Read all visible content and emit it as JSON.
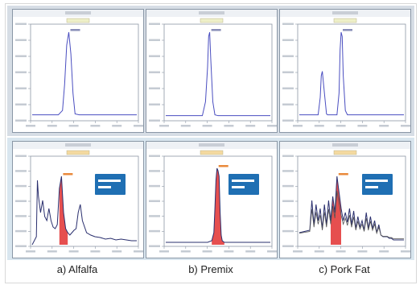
{
  "captions": [
    "a) Alfalfa",
    "b) Premix",
    "c) Pork Fat"
  ],
  "colors": {
    "trace": "#4a4ec0",
    "trace_dark": "#2a2f6e",
    "trace_gray": "#555555",
    "peak_fill": "#e23030",
    "box_bg": "#1f6fb3",
    "box_text": "#ffffff",
    "row_top_bg": "#d6dde5",
    "row_bot_bg": "#d9e6ef"
  },
  "chart_data": [
    {
      "type": "line",
      "panel": "a-top",
      "x": [
        0,
        25,
        29,
        31,
        33,
        35,
        37,
        39,
        41,
        45,
        100
      ],
      "y": [
        0.05,
        0.05,
        0.1,
        0.4,
        0.85,
        1.0,
        0.75,
        0.3,
        0.06,
        0.05,
        0.05
      ]
    },
    {
      "type": "line",
      "panel": "b-top",
      "x": [
        0,
        35,
        38,
        40,
        41,
        42,
        43,
        45,
        47,
        50,
        100
      ],
      "y": [
        0.04,
        0.04,
        0.2,
        0.6,
        0.95,
        1.0,
        0.7,
        0.2,
        0.05,
        0.04,
        0.04
      ]
    },
    {
      "type": "line",
      "panel": "c-top",
      "x": [
        0,
        18,
        20,
        21,
        22,
        24,
        26,
        27,
        36,
        38,
        39,
        40,
        41,
        42,
        44,
        46,
        100
      ],
      "y": [
        0.05,
        0.05,
        0.25,
        0.5,
        0.55,
        0.3,
        0.06,
        0.05,
        0.05,
        0.3,
        0.8,
        1.0,
        0.95,
        0.5,
        0.1,
        0.05,
        0.05
      ]
    },
    {
      "type": "line",
      "panel": "a-bottom",
      "x": [
        0,
        4,
        5,
        6,
        8,
        10,
        12,
        14,
        16,
        18,
        20,
        22,
        24,
        26,
        28,
        30,
        32,
        34,
        36,
        38,
        40,
        42,
        44,
        46,
        48,
        52,
        56,
        60,
        65,
        70,
        75,
        80,
        85,
        90,
        95,
        100
      ],
      "y": [
        0.0,
        0.1,
        0.8,
        0.6,
        0.4,
        0.55,
        0.35,
        0.3,
        0.45,
        0.3,
        0.22,
        0.2,
        0.25,
        0.7,
        0.85,
        0.4,
        0.2,
        0.15,
        0.12,
        0.15,
        0.18,
        0.2,
        0.4,
        0.5,
        0.3,
        0.15,
        0.12,
        0.1,
        0.09,
        0.07,
        0.08,
        0.06,
        0.07,
        0.06,
        0.05,
        0.05
      ],
      "peak": {
        "x0": 26,
        "x1": 34,
        "fill": 0.85
      }
    },
    {
      "type": "line",
      "panel": "b-bottom",
      "x": [
        0,
        40,
        44,
        46,
        47,
        48,
        49,
        50,
        51,
        52,
        53,
        54,
        56,
        60,
        100
      ],
      "y": [
        0.03,
        0.03,
        0.05,
        0.15,
        0.45,
        0.8,
        0.95,
        0.92,
        0.85,
        0.4,
        0.12,
        0.05,
        0.03,
        0.03,
        0.03
      ],
      "peak": {
        "x0": 44,
        "x1": 56,
        "fill": 0.95
      }
    },
    {
      "type": "line",
      "panel": "c-bottom",
      "x": [
        0,
        10,
        12,
        14,
        16,
        18,
        20,
        22,
        24,
        26,
        28,
        30,
        32,
        34,
        36,
        38,
        40,
        42,
        44,
        46,
        48,
        50,
        52,
        54,
        56,
        58,
        60,
        62,
        64,
        66,
        68,
        70,
        72,
        74,
        76,
        78,
        80,
        82,
        84,
        86,
        88,
        90,
        92,
        100
      ],
      "y": [
        0.15,
        0.18,
        0.55,
        0.25,
        0.5,
        0.3,
        0.45,
        0.2,
        0.5,
        0.25,
        0.55,
        0.3,
        0.6,
        0.4,
        0.85,
        0.65,
        0.45,
        0.3,
        0.4,
        0.28,
        0.45,
        0.25,
        0.42,
        0.2,
        0.35,
        0.22,
        0.3,
        0.18,
        0.4,
        0.2,
        0.35,
        0.2,
        0.3,
        0.15,
        0.25,
        0.12,
        0.1,
        0.1,
        0.1,
        0.08,
        0.08,
        0.06,
        0.06,
        0.06
      ],
      "peak": {
        "x0": 30,
        "x1": 40,
        "fill": 0.75
      }
    }
  ]
}
